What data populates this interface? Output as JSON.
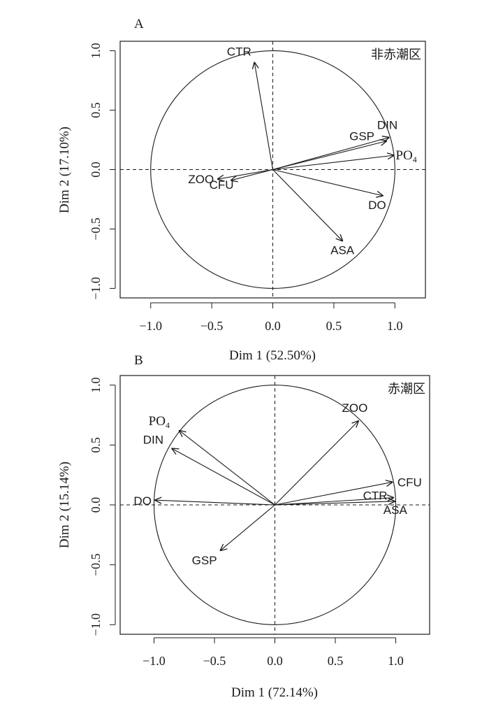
{
  "chart_data": [
    {
      "type": "scatter",
      "panel_label": "A",
      "region_label": "非赤潮区",
      "xlabel": "Dim 1 (52.50%)",
      "ylabel": "Dim 2 (17.10%)",
      "xlim": [
        -1.25,
        1.25
      ],
      "ylim": [
        -1.08,
        1.08
      ],
      "xticks": [
        -1.0,
        -0.5,
        0.0,
        0.5,
        1.0
      ],
      "yticks": [
        -1.0,
        -0.5,
        0.0,
        0.5,
        1.0
      ],
      "xtick_labels": [
        "−1.0",
        "−0.5",
        "0.0",
        "0.5",
        "1.0"
      ],
      "ytick_labels": [
        "−1.0",
        "−0.5",
        "0.0",
        "0.5",
        "1.0"
      ],
      "unit_circle": true,
      "reference_lines": "dashed at x=0 and y=0",
      "vectors": [
        {
          "name": "CTR",
          "x": -0.15,
          "y": 0.9
        },
        {
          "name": "DIN",
          "x": 0.95,
          "y": 0.27
        },
        {
          "name": "GSP",
          "x": 0.93,
          "y": 0.24
        },
        {
          "name": "PO",
          "sub": "4",
          "x": 0.99,
          "y": 0.12
        },
        {
          "name": "DO",
          "x": 0.9,
          "y": -0.22
        },
        {
          "name": "ASA",
          "x": 0.57,
          "y": -0.6
        },
        {
          "name": "ZOO",
          "x": -0.45,
          "y": -0.08
        },
        {
          "name": "CFU",
          "x": -0.34,
          "y": -0.09
        }
      ]
    },
    {
      "type": "scatter",
      "panel_label": "B",
      "region_label": "赤潮区",
      "xlabel": "Dim 1 (72.14%)",
      "ylabel": "Dim 2 (15.14%)",
      "xlim": [
        -1.28,
        1.28
      ],
      "ylim": [
        -1.08,
        1.08
      ],
      "xticks": [
        -1.0,
        -0.5,
        0.0,
        0.5,
        1.0
      ],
      "yticks": [
        -1.0,
        -0.5,
        0.0,
        0.5,
        1.0
      ],
      "xtick_labels": [
        "−1.0",
        "−0.5",
        "0.0",
        "0.5",
        "1.0"
      ],
      "ytick_labels": [
        "−1.0",
        "−0.5",
        "0.0",
        "0.5",
        "1.0"
      ],
      "unit_circle": true,
      "reference_lines": "dashed at x=0 and y=0",
      "vectors": [
        {
          "name": "ZOO",
          "x": 0.69,
          "y": 0.7
        },
        {
          "name": "PO",
          "sub": "4",
          "x": -0.79,
          "y": 0.62
        },
        {
          "name": "DIN",
          "x": -0.85,
          "y": 0.47
        },
        {
          "name": "CFU",
          "x": 0.97,
          "y": 0.19
        },
        {
          "name": "CTR",
          "x": 0.98,
          "y": 0.06
        },
        {
          "name": "ASA",
          "x": 0.99,
          "y": 0.03
        },
        {
          "name": "DO",
          "x": -0.99,
          "y": 0.04
        },
        {
          "name": "GSP",
          "x": -0.45,
          "y": -0.38
        }
      ]
    }
  ]
}
